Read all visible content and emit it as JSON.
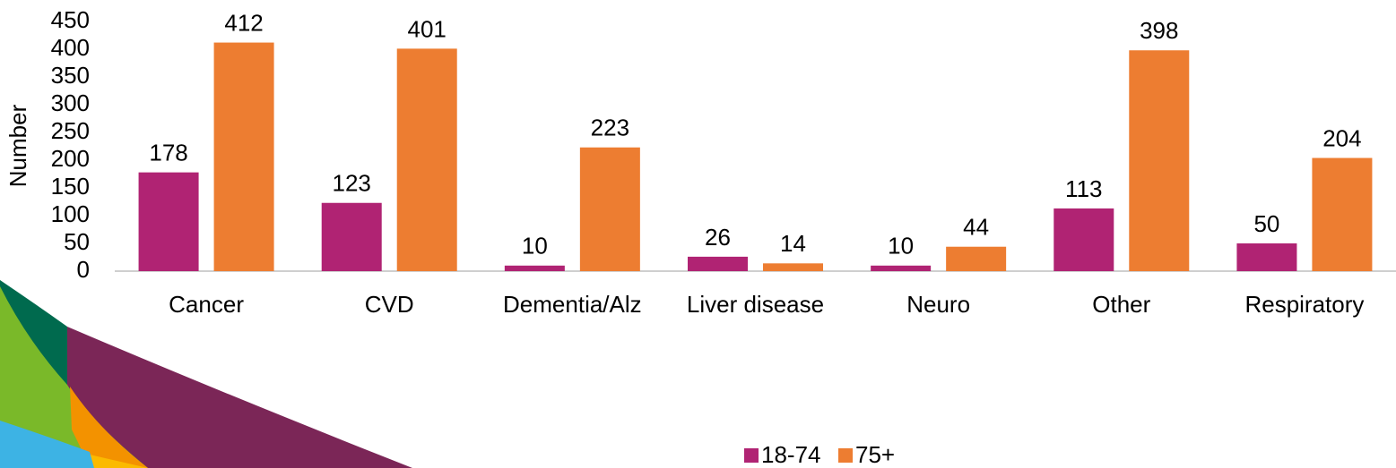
{
  "chart_data": {
    "type": "bar",
    "y_label": "Number",
    "categories": [
      "Cancer",
      "CVD",
      "Dementia/Alz",
      "Liver disease",
      "Neuro",
      "Other",
      "Respiratory"
    ],
    "series": [
      {
        "name": "18-74",
        "color": "#b02373",
        "values": [
          178,
          123,
          10,
          26,
          10,
          113,
          50
        ]
      },
      {
        "name": "75+",
        "color": "#ed7d31",
        "values": [
          412,
          401,
          223,
          14,
          44,
          398,
          204
        ]
      }
    ],
    "ylim": [
      0,
      450
    ],
    "yticks": [
      0,
      50,
      100,
      150,
      200,
      250,
      300,
      350,
      400,
      450
    ],
    "grid": false,
    "legend": "bottom"
  }
}
